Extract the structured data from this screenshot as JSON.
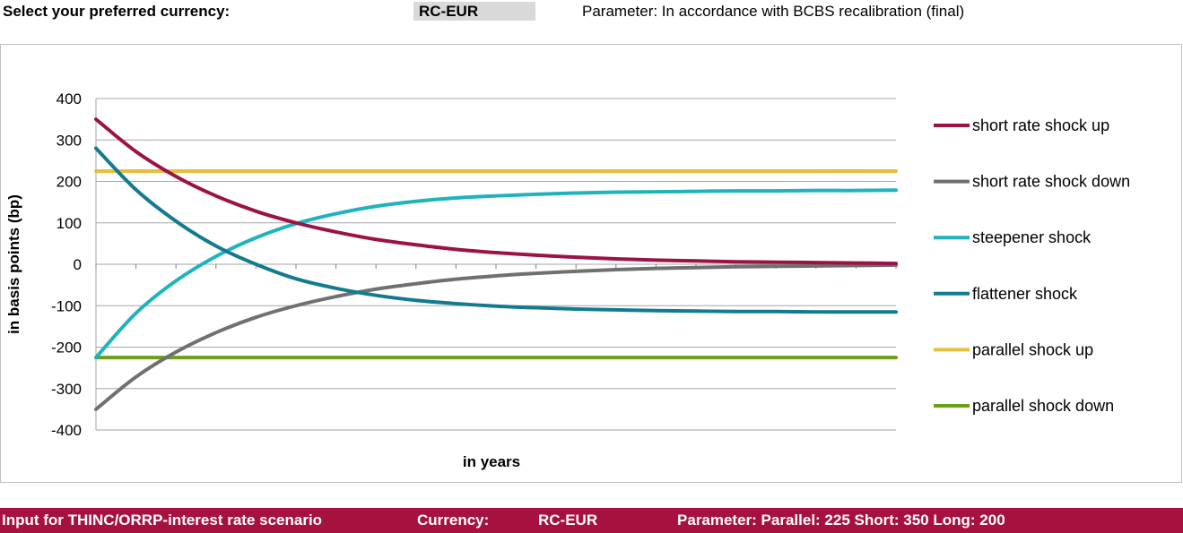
{
  "header": {
    "select_label": "Select your preferred currency:",
    "currency_value": "RC-EUR",
    "parameter_text": "Parameter:  In accordance with BCBS recalibration (final)"
  },
  "chart_data": {
    "type": "line",
    "xlabel": "in years",
    "ylabel": "in basis points (bp)",
    "ylim": [
      -400,
      400
    ],
    "yticks": [
      400,
      300,
      200,
      100,
      0,
      -100,
      -200,
      -300,
      -400
    ],
    "xlim": [
      0,
      20
    ],
    "grid": true,
    "legend_position": "right",
    "x": [
      0,
      1,
      2,
      3,
      4,
      5,
      6,
      7,
      8,
      9,
      10,
      11,
      12,
      13,
      14,
      15,
      16,
      17,
      18,
      19,
      20
    ],
    "series": [
      {
        "name": "short rate shock up",
        "color": "#9b1346",
        "values": [
          350,
          272,
          212,
          165,
          128,
          100,
          78,
          60,
          47,
          36,
          28,
          22,
          17,
          13,
          10,
          8,
          6,
          5,
          4,
          3,
          2
        ]
      },
      {
        "name": "short rate shock down",
        "color": "#707070",
        "values": [
          -350,
          -272,
          -212,
          -165,
          -128,
          -100,
          -78,
          -60,
          -47,
          -36,
          -28,
          -22,
          -17,
          -13,
          -10,
          -8,
          -6,
          -5,
          -4,
          -3,
          -2
        ]
      },
      {
        "name": "steepener shock",
        "color": "#1fb3be",
        "values": [
          -225,
          -118,
          -40,
          19,
          64,
          98,
          122,
          140,
          152,
          160,
          165,
          169,
          172,
          174,
          175,
          176,
          177,
          177,
          178,
          178,
          179
        ]
      },
      {
        "name": "flattener shock",
        "color": "#127b8f",
        "values": [
          280,
          180,
          104,
          44,
          0,
          -35,
          -58,
          -75,
          -87,
          -95,
          -101,
          -105,
          -108,
          -110,
          -112,
          -113,
          -114,
          -114,
          -115,
          -115,
          -115
        ]
      },
      {
        "name": "parallel shock up",
        "color": "#e6bf3c",
        "values": [
          225,
          225,
          225,
          225,
          225,
          225,
          225,
          225,
          225,
          225,
          225,
          225,
          225,
          225,
          225,
          225,
          225,
          225,
          225,
          225,
          225
        ]
      },
      {
        "name": "parallel shock down",
        "color": "#6aa116",
        "values": [
          -225,
          -225,
          -225,
          -225,
          -225,
          -225,
          -225,
          -225,
          -225,
          -225,
          -225,
          -225,
          -225,
          -225,
          -225,
          -225,
          -225,
          -225,
          -225,
          -225,
          -225
        ]
      }
    ]
  },
  "footer": {
    "title": "Input for THINC/ORRP-interest rate scenario",
    "currency_label": "Currency:",
    "currency_value": "RC-EUR",
    "parameter": "Parameter: Parallel: 225 Short: 350 Long: 200"
  }
}
